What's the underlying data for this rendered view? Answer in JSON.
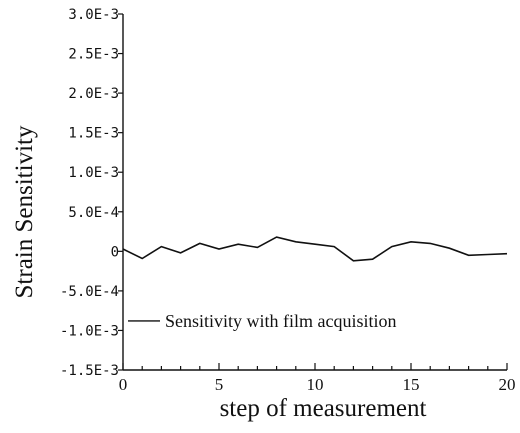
{
  "chart_data": {
    "type": "line",
    "xlabel": "step of measurement",
    "ylabel": "Strain Sensitivity",
    "xlim": [
      0,
      20
    ],
    "ylim": [
      -0.0015,
      0.003
    ],
    "x_ticks": [
      0,
      5,
      10,
      15,
      20
    ],
    "x_tick_labels": [
      "0",
      "5",
      "10",
      "15",
      "20"
    ],
    "y_ticks": [
      -0.0015,
      -0.001,
      -0.0005,
      0,
      0.0005,
      0.001,
      0.0015,
      0.002,
      0.0025,
      0.003
    ],
    "y_tick_labels": [
      "-1.5E-3",
      "-1.0E-3",
      "-5.0E-4",
      "0",
      "5.0E-4",
      "1.0E-3",
      "1.5E-3",
      "2.0E-3",
      "2.5E-3",
      "3.0E-3"
    ],
    "grid": false,
    "legend_position": "bottom-left",
    "series": [
      {
        "name": "Sensitivity with film acquisition",
        "color": "#111111",
        "x": [
          0,
          1,
          2,
          3,
          4,
          5,
          6,
          7,
          8,
          9,
          10,
          11,
          12,
          13,
          14,
          15,
          16,
          17,
          18,
          19,
          20
        ],
        "y": [
          3e-05,
          -9e-05,
          6e-05,
          -2e-05,
          0.0001,
          3e-05,
          9e-05,
          5e-05,
          0.00018,
          0.00012,
          9e-05,
          6e-05,
          -0.00012,
          -0.0001,
          6e-05,
          0.00012,
          0.0001,
          4e-05,
          -5e-05,
          -4e-05,
          -3e-05
        ]
      }
    ]
  }
}
